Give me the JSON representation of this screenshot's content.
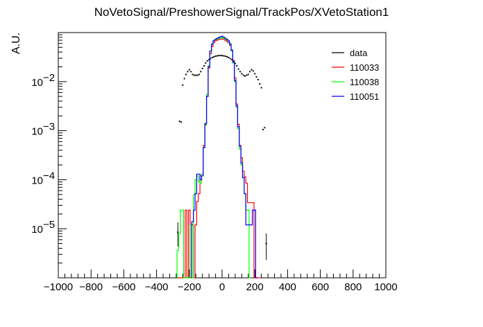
{
  "chart_data": {
    "type": "line",
    "title": "NoVetoSignal/PreshowerSignal/TrackPos/XVetoStation1",
    "xlabel": "",
    "ylabel": "A.U.",
    "xlim": [
      -1000,
      1000
    ],
    "ylim": [
      1e-06,
      0.1
    ],
    "yscale": "log",
    "grid": false,
    "legend_position": "top-right",
    "x_tick_labels": [
      "−1000",
      "−800",
      "−600",
      "−400",
      "−200",
      "0",
      "200",
      "400",
      "600",
      "800",
      "1000"
    ],
    "x_ticks": [
      -1000,
      -800,
      -600,
      -400,
      -200,
      0,
      200,
      400,
      600,
      800,
      1000
    ],
    "y_tick_labels": [
      {
        "base": "10",
        "exp": "−5",
        "value": 1e-05
      },
      {
        "base": "10",
        "exp": "−4",
        "value": 0.0001
      },
      {
        "base": "10",
        "exp": "−3",
        "value": 0.001
      },
      {
        "base": "10",
        "exp": "−2",
        "value": 0.01
      }
    ],
    "series": [
      {
        "name": "data",
        "color": "#000000",
        "style": "points",
        "points": [
          {
            "x": -270,
            "y": 8.5e-06,
            "ylo": 4.3e-06,
            "yhi": 1.35e-05
          },
          {
            "x": -260,
            "y": 0.00155
          },
          {
            "x": -250,
            "y": 0.0015
          },
          {
            "x": -240,
            "y": 0.0085
          },
          {
            "x": -230,
            "y": 0.0115
          },
          {
            "x": -220,
            "y": 0.014
          },
          {
            "x": -210,
            "y": 0.016
          },
          {
            "x": -200,
            "y": 0.0175
          },
          {
            "x": -190,
            "y": 0.016
          },
          {
            "x": -180,
            "y": 0.014
          },
          {
            "x": -170,
            "y": 0.0135
          },
          {
            "x": -160,
            "y": 0.0135
          },
          {
            "x": -150,
            "y": 0.0135
          },
          {
            "x": -140,
            "y": 0.014
          },
          {
            "x": -130,
            "y": 0.016
          },
          {
            "x": -120,
            "y": 0.0185
          },
          {
            "x": -110,
            "y": 0.021
          },
          {
            "x": -100,
            "y": 0.024
          },
          {
            "x": -90,
            "y": 0.0265
          },
          {
            "x": -80,
            "y": 0.028
          },
          {
            "x": -70,
            "y": 0.0295
          },
          {
            "x": -60,
            "y": 0.031
          },
          {
            "x": -50,
            "y": 0.032
          },
          {
            "x": -40,
            "y": 0.033
          },
          {
            "x": -30,
            "y": 0.0335
          },
          {
            "x": -20,
            "y": 0.034
          },
          {
            "x": -10,
            "y": 0.034
          },
          {
            "x": 0,
            "y": 0.034
          },
          {
            "x": 10,
            "y": 0.0335
          },
          {
            "x": 20,
            "y": 0.033
          },
          {
            "x": 30,
            "y": 0.032
          },
          {
            "x": 40,
            "y": 0.031
          },
          {
            "x": 50,
            "y": 0.0295
          },
          {
            "x": 60,
            "y": 0.028
          },
          {
            "x": 70,
            "y": 0.026
          },
          {
            "x": 80,
            "y": 0.0235
          },
          {
            "x": 90,
            "y": 0.021
          },
          {
            "x": 100,
            "y": 0.018
          },
          {
            "x": 110,
            "y": 0.016
          },
          {
            "x": 120,
            "y": 0.0145
          },
          {
            "x": 130,
            "y": 0.0135
          },
          {
            "x": 140,
            "y": 0.013
          },
          {
            "x": 150,
            "y": 0.0135
          },
          {
            "x": 160,
            "y": 0.014
          },
          {
            "x": 170,
            "y": 0.016
          },
          {
            "x": 180,
            "y": 0.0175
          },
          {
            "x": 190,
            "y": 0.0165
          },
          {
            "x": 200,
            "y": 0.0145
          },
          {
            "x": 210,
            "y": 0.0125
          },
          {
            "x": 220,
            "y": 0.011
          },
          {
            "x": 230,
            "y": 0.009
          },
          {
            "x": 240,
            "y": 0.0075
          },
          {
            "x": 250,
            "y": 0.00105
          },
          {
            "x": 260,
            "y": 0.00115
          },
          {
            "x": 270,
            "y": 5e-06,
            "ylo": 2.3e-06,
            "yhi": 8e-06
          }
        ]
      },
      {
        "name": "110033",
        "color": "#ff0000",
        "style": "step",
        "bin_width": 10,
        "bins": [
          [
            -260,
            1e-07
          ],
          [
            -250,
            1e-07
          ],
          [
            -240,
            1e-07
          ],
          [
            -230,
            1e-07
          ],
          [
            -220,
            2.4e-05
          ],
          [
            -210,
            1e-07
          ],
          [
            -200,
            2.4e-05
          ],
          [
            -190,
            1e-07
          ],
          [
            -180,
            1.2e-05
          ],
          [
            -170,
            1e-07
          ],
          [
            -160,
            1.2e-05
          ],
          [
            -150,
            3.6e-05
          ],
          [
            -140,
            5.2e-05
          ],
          [
            -130,
            0.00012
          ],
          [
            -120,
            0.00013
          ],
          [
            -110,
            0.0005
          ],
          [
            -100,
            0.00135
          ],
          [
            -90,
            0.005
          ],
          [
            -80,
            0.019
          ],
          [
            -70,
            0.037
          ],
          [
            -60,
            0.052
          ],
          [
            -50,
            0.062
          ],
          [
            -40,
            0.068
          ],
          [
            -30,
            0.07
          ],
          [
            -20,
            0.072
          ],
          [
            -10,
            0.073
          ],
          [
            0,
            0.074
          ],
          [
            10,
            0.073
          ],
          [
            20,
            0.07
          ],
          [
            30,
            0.066
          ],
          [
            40,
            0.062
          ],
          [
            50,
            0.055
          ],
          [
            60,
            0.043
          ],
          [
            70,
            0.027
          ],
          [
            80,
            0.012
          ],
          [
            90,
            0.0035
          ],
          [
            100,
            0.00135
          ],
          [
            110,
            0.0005
          ],
          [
            120,
            0.00028
          ],
          [
            130,
            0.00015
          ],
          [
            140,
            0.000115
          ],
          [
            150,
            8.5e-05
          ],
          [
            160,
            3.4e-05
          ],
          [
            170,
            3.4e-05
          ],
          [
            180,
            3.4e-05
          ],
          [
            190,
            3.4e-05
          ],
          [
            200,
            1e-07
          ],
          [
            210,
            1e-07
          ],
          [
            220,
            1e-07
          ],
          [
            230,
            1e-07
          ]
        ]
      },
      {
        "name": "110038",
        "color": "#00ff00",
        "style": "step",
        "bin_width": 10,
        "bins": [
          [
            -270,
            3.6e-06
          ],
          [
            -260,
            8e-06
          ],
          [
            -250,
            2.4e-05
          ],
          [
            -240,
            2.4e-05
          ],
          [
            -230,
            1e-07
          ],
          [
            -220,
            1e-07
          ],
          [
            -210,
            1e-07
          ],
          [
            -200,
            1e-07
          ],
          [
            -190,
            1.2e-05
          ],
          [
            -180,
            1e-07
          ],
          [
            -170,
            5e-05
          ],
          [
            -160,
            0.0001
          ],
          [
            -150,
            0.00012
          ],
          [
            -140,
            9e-05
          ],
          [
            -130,
            8.5e-05
          ],
          [
            -120,
            0.00013
          ],
          [
            -110,
            0.00045
          ],
          [
            -100,
            0.0013
          ],
          [
            -90,
            0.0055
          ],
          [
            -80,
            0.021
          ],
          [
            -70,
            0.042
          ],
          [
            -60,
            0.058
          ],
          [
            -50,
            0.068
          ],
          [
            -40,
            0.072
          ],
          [
            -30,
            0.074
          ],
          [
            -20,
            0.076
          ],
          [
            -10,
            0.078
          ],
          [
            0,
            0.079
          ],
          [
            10,
            0.077
          ],
          [
            20,
            0.074
          ],
          [
            30,
            0.072
          ],
          [
            40,
            0.066
          ],
          [
            50,
            0.057
          ],
          [
            60,
            0.042
          ],
          [
            70,
            0.024
          ],
          [
            80,
            0.01
          ],
          [
            90,
            0.003
          ],
          [
            100,
            0.0011
          ],
          [
            110,
            0.00042
          ],
          [
            120,
            0.0002
          ],
          [
            130,
            0.00011
          ],
          [
            140,
            5.2e-05
          ],
          [
            150,
            2.4e-05
          ],
          [
            160,
            2.4e-05
          ],
          [
            170,
            1e-07
          ]
        ]
      },
      {
        "name": "110051",
        "color": "#0000ff",
        "style": "step",
        "bin_width": 10,
        "bins": [
          [
            -180,
            1.4e-05
          ],
          [
            -170,
            2.4e-05
          ],
          [
            -160,
            5.2e-05
          ],
          [
            -150,
            0.00013
          ],
          [
            -140,
            0.00013
          ],
          [
            -130,
            0.0001
          ],
          [
            -120,
            0.00012
          ],
          [
            -110,
            0.00045
          ],
          [
            -100,
            0.0014
          ],
          [
            -90,
            0.005
          ],
          [
            -80,
            0.02
          ],
          [
            -70,
            0.042
          ],
          [
            -60,
            0.058
          ],
          [
            -50,
            0.068
          ],
          [
            -40,
            0.073
          ],
          [
            -30,
            0.076
          ],
          [
            -20,
            0.079
          ],
          [
            -10,
            0.082
          ],
          [
            0,
            0.084
          ],
          [
            10,
            0.081
          ],
          [
            20,
            0.077
          ],
          [
            30,
            0.073
          ],
          [
            40,
            0.068
          ],
          [
            50,
            0.059
          ],
          [
            60,
            0.044
          ],
          [
            70,
            0.025
          ],
          [
            80,
            0.0105
          ],
          [
            90,
            0.0032
          ],
          [
            100,
            0.0012
          ],
          [
            110,
            0.00048
          ],
          [
            120,
            0.00022
          ],
          [
            130,
            0.00011
          ],
          [
            140,
            5.2e-05
          ],
          [
            150,
            1.2e-05
          ],
          [
            160,
            1.2e-05
          ],
          [
            170,
            1.2e-05
          ],
          [
            180,
            1.2e-05
          ],
          [
            190,
            2.4e-05
          ],
          [
            200,
            2.4e-05
          ],
          [
            210,
            1e-07
          ]
        ]
      }
    ]
  }
}
